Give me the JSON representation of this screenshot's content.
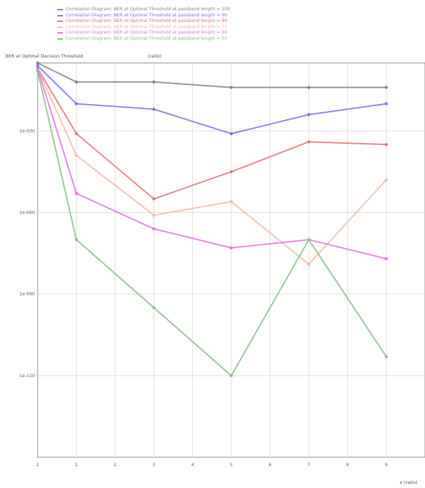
{
  "chart_data": {
    "type": "line",
    "ylabel": "BER at Optimal Decision Threshold",
    "units": "(ratio)",
    "xlabel": "x (ratio)",
    "y_scale": "log",
    "ylim": [
      1e-150,
      1e-05
    ],
    "y_ticks": [
      {
        "value": 1e-30,
        "label": "1e-030"
      },
      {
        "value": 1e-60,
        "label": "1e-060"
      },
      {
        "value": 1e-90,
        "label": "1e-090"
      },
      {
        "value": 1e-120,
        "label": "1e-120"
      }
    ],
    "x_ticks": [
      "1",
      "1",
      "2",
      "3",
      "4",
      "5",
      "6",
      "7",
      "8",
      "9"
    ],
    "x": [
      1,
      2,
      4,
      6,
      8,
      10
    ],
    "series": [
      {
        "name": "Correlation Diagram: BER at Optimal Threshold at passband length = 100",
        "color": "#808080",
        "values": [
          1e-05,
          1e-12,
          1e-12,
          1e-14,
          1e-14,
          1e-14
        ]
      },
      {
        "name": "Correlation Diagram: BER at Optimal Threshold at passband length = 90",
        "color": "#7070ee",
        "values": [
          1e-06,
          1e-20,
          1e-22,
          1e-31,
          1e-24,
          1e-20
        ]
      },
      {
        "name": "Correlation Diagram: BER at Optimal Threshold at passband length = 80",
        "color": "#e07070",
        "values": [
          1e-07,
          1e-31,
          1e-55,
          1e-45,
          1e-34,
          1e-35
        ]
      },
      {
        "name": "Correlation Diagram: BER at Optimal Threshold at passband length = 70",
        "color": "#f4b8a0",
        "values": [
          1e-07,
          1e-39,
          1e-61,
          1e-56,
          1e-79,
          1e-48
        ]
      },
      {
        "name": "Correlation Diagram: BER at Optimal Threshold at passband length = 60",
        "color": "#e070e0",
        "values": [
          1e-07,
          1e-53,
          1e-66,
          1e-73,
          1e-70,
          1e-77
        ]
      },
      {
        "name": "Correlation Diagram: BER at Optimal Threshold at passband length = 50",
        "color": "#80c080",
        "values": [
          1e-08,
          1e-70,
          1e-95,
          1e-120,
          1e-70,
          1e-113
        ]
      }
    ]
  }
}
